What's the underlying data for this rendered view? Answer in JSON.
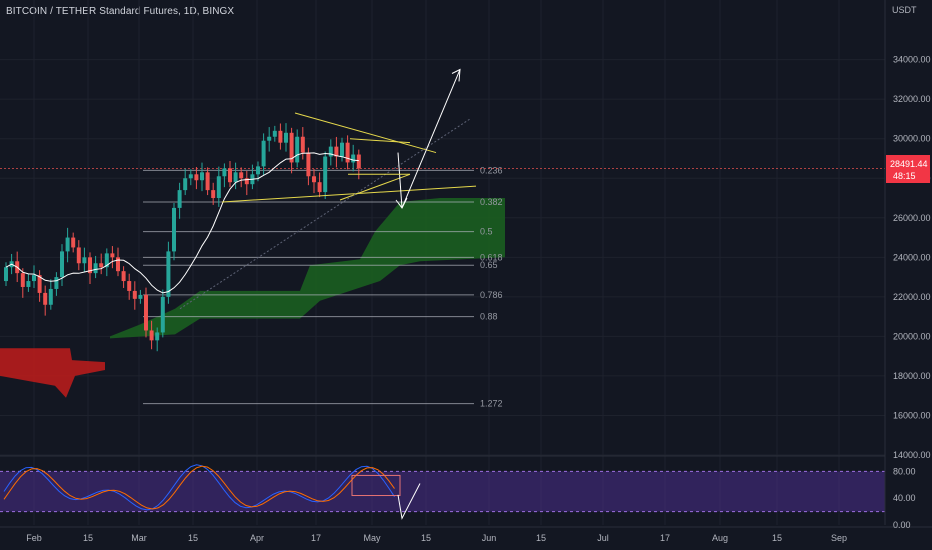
{
  "header": {
    "symbol_title": "BITCOIN / TETHER Standard Futures, 1D, BINGX"
  },
  "price_scale": {
    "currency": "USDT"
  },
  "last_price": {
    "value": "28491.44",
    "countdown": "48:15",
    "color": "#f23645"
  },
  "colors": {
    "background": "#131722",
    "grid": "#1e222d",
    "up": "#26a69a",
    "down": "#ef5350",
    "cloud_bull": "#1b5e20",
    "cloud_bear": "#b71c1c",
    "ma_line": "#ffffff",
    "trendline": "#e6d94c",
    "stoch_band": "#4a2d8c",
    "stoch_k": "#2962ff",
    "stoch_d": "#ff6d00"
  },
  "chart_data": [
    {
      "type": "candlestick",
      "ylim": [
        14000,
        35500
      ],
      "yticks": [
        "34000.00",
        "32000.00",
        "30000.00",
        "28000.00",
        "26000.00",
        "24000.00",
        "22000.00",
        "20000.00",
        "18000.00",
        "16000.00",
        "14000.00"
      ],
      "xticks": [
        "Feb",
        "15",
        "Mar",
        "15",
        "Apr",
        "17",
        "May",
        "15",
        "Jun",
        "15",
        "Jul",
        "17",
        "Aug",
        "15",
        "Sep"
      ],
      "close_path": [
        23500,
        23800,
        23200,
        22500,
        22800,
        23100,
        22200,
        21600,
        22400,
        23000,
        24300,
        25000,
        24500,
        23700,
        24000,
        23200,
        23700,
        23500,
        24200,
        24000,
        23300,
        22800,
        22300,
        21900,
        22100,
        20300,
        19800,
        20200,
        22000,
        24300,
        26500,
        27400,
        28000,
        28200,
        27900,
        28300,
        27400,
        27000,
        28100,
        28500,
        27800,
        28300,
        28000,
        27700,
        28200,
        28600,
        29900,
        30100,
        30400,
        29800,
        30300,
        28800,
        30100,
        29300,
        28100,
        27800,
        27300,
        29100,
        29600,
        29100,
        29800,
        28800,
        29200,
        28500
      ],
      "fib_levels": [
        {
          "label": "0.236",
          "price": 28400
        },
        {
          "label": "0.382",
          "price": 26800
        },
        {
          "label": "0.5",
          "price": 25300
        },
        {
          "label": "0.618",
          "price": 24000
        },
        {
          "label": "0.65",
          "price": 23600
        },
        {
          "label": "0.786",
          "price": 22100
        },
        {
          "label": "0.88",
          "price": 21000
        },
        {
          "label": "1.272",
          "price": 16600
        }
      ]
    },
    {
      "type": "stochastic",
      "ylim": [
        0,
        100
      ],
      "yticks": [
        "80.00",
        "40.00",
        "0.00"
      ],
      "band": [
        20,
        80
      ]
    }
  ]
}
